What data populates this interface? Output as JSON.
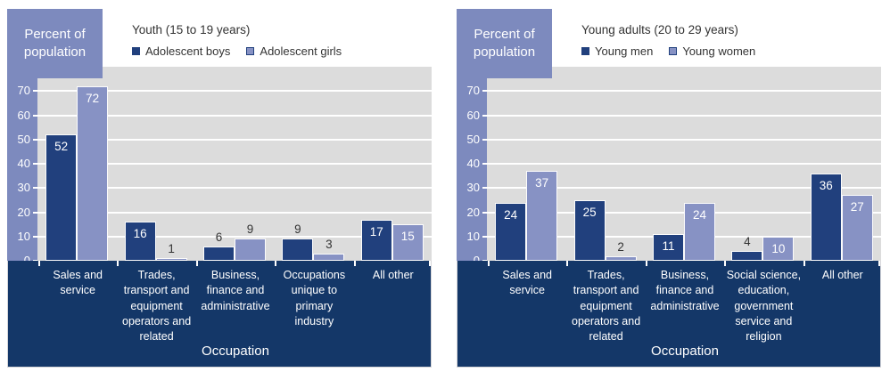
{
  "style": {
    "series1_color": "#21407d",
    "series2_color": "#8792c4",
    "band_color": "#7d8abe",
    "plot_bg": "#dcdcdc",
    "grid_color": "#ffffff",
    "x_band_color": "#143768",
    "text_dark": "#333333"
  },
  "chart_data": [
    {
      "type": "bar",
      "title": "Youth (15 to 19 years)",
      "y_axis_box_label": "Percent of population",
      "xlabel": "Occupation",
      "ylabel": "Percent of population",
      "ylim": [
        0,
        80
      ],
      "ytick_step": 10,
      "yticks": [
        0,
        10,
        20,
        30,
        40,
        50,
        60,
        70,
        80
      ],
      "grid": true,
      "legend_position": "top-left",
      "categories": [
        "Sales and service",
        "Trades, transport and equipment operators and related",
        "Business, finance and administrative",
        "Occupations unique to primary industry",
        "All other"
      ],
      "series": [
        {
          "name": "Adolescent boys",
          "values": [
            52,
            16,
            6,
            9,
            17
          ]
        },
        {
          "name": "Adolescent girls",
          "values": [
            72,
            1,
            9,
            3,
            15
          ]
        }
      ]
    },
    {
      "type": "bar",
      "title": "Young adults (20 to 29 years)",
      "y_axis_box_label": "Percent of population",
      "xlabel": "Occupation",
      "ylabel": "Percent of population",
      "ylim": [
        0,
        80
      ],
      "ytick_step": 10,
      "yticks": [
        0,
        10,
        20,
        30,
        40,
        50,
        60,
        70,
        80
      ],
      "grid": true,
      "legend_position": "top-left",
      "categories": [
        "Sales and service",
        "Trades, transport and equipment operators and related",
        "Business, finance and administrative",
        "Social science, education, government service and religion",
        "All other"
      ],
      "series": [
        {
          "name": "Young men",
          "values": [
            24,
            25,
            11,
            4,
            36
          ]
        },
        {
          "name": "Young women",
          "values": [
            37,
            2,
            24,
            10,
            27
          ]
        }
      ]
    }
  ]
}
